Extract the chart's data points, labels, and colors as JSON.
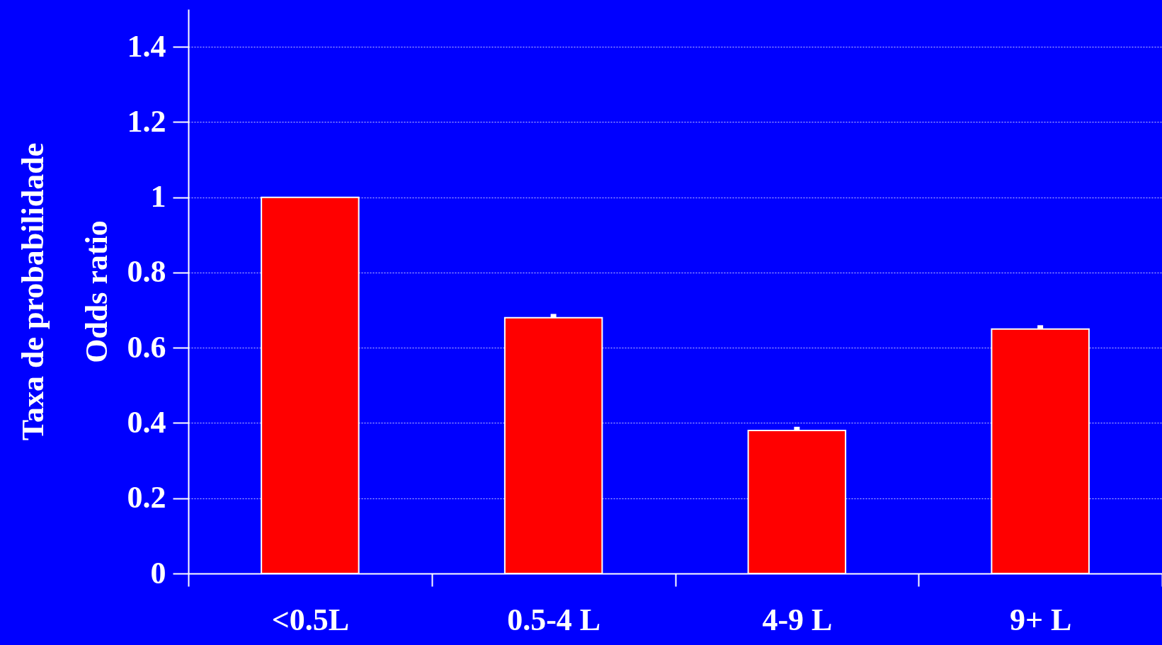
{
  "chart_data": {
    "type": "bar",
    "ylabel": "Taxa de probabilidade\nOdds ratio",
    "categories": [
      "<0.5L",
      "0.5-4 L",
      "4-9 L",
      "9+ L"
    ],
    "values": [
      1.0,
      0.68,
      0.38,
      0.65
    ],
    "errors": [
      null,
      [
        0.68,
        0.69
      ],
      [
        0.38,
        0.39
      ],
      [
        0.65,
        0.66
      ]
    ],
    "color": "#ff0000",
    "ylim": [
      0,
      1.5
    ],
    "yticks": [
      0,
      0.2,
      0.4,
      0.6,
      0.8,
      1,
      1.2,
      1.4
    ],
    "grid": "y"
  }
}
